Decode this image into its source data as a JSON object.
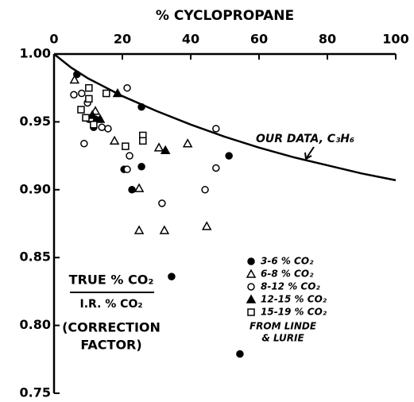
{
  "chart_data": {
    "type": "scatter",
    "xlabel": "% CYCLOPROPANE",
    "xlim": [
      0,
      100
    ],
    "xticks": [
      0,
      20,
      40,
      60,
      80,
      100
    ],
    "ylim": [
      0.75,
      1.0
    ],
    "yticks": [
      {
        "value": 1.0,
        "label": "1.00"
      },
      0.95,
      {
        "value": 0.9,
        "label": "0.90"
      },
      0.85,
      {
        "value": 0.8,
        "label": "0.80"
      },
      0.75
    ],
    "curve": {
      "name": "OUR DATA, C₃H₆",
      "color": "#000000",
      "x": [
        0,
        5,
        10,
        20,
        30,
        40,
        50,
        60,
        70,
        80,
        90,
        100
      ],
      "y": [
        1.0,
        0.99,
        0.982,
        0.969,
        0.958,
        0.948,
        0.939,
        0.931,
        0.924,
        0.918,
        0.912,
        0.907
      ]
    },
    "series": [
      {
        "name": "3-6 % CO₂",
        "marker": "circle",
        "filled": true,
        "color": "#000000",
        "x": [
          6.7,
          12.1,
          25.6,
          20.5,
          22.8,
          25.6,
          51.2,
          34.4,
          54.4,
          10.2,
          11.6
        ],
        "y": [
          0.985,
          0.952,
          0.961,
          0.915,
          0.9,
          0.917,
          0.925,
          0.836,
          0.779,
          0.952,
          0.946
        ]
      },
      {
        "name": "6-8 % CO₂",
        "marker": "triangle",
        "filled": false,
        "color": "#000000",
        "x": [
          6.0,
          17.7,
          24.9,
          24.9,
          32.3,
          44.7,
          30.7,
          39.1,
          12.1
        ],
        "y": [
          0.981,
          0.936,
          0.901,
          0.87,
          0.87,
          0.873,
          0.931,
          0.934,
          0.958
        ]
      },
      {
        "name": "8-12 % CO₂",
        "marker": "circle",
        "filled": false,
        "color": "#000000",
        "x": [
          5.8,
          8.1,
          8.8,
          21.4,
          22.1,
          21.4,
          31.6,
          44.2,
          47.4,
          47.4,
          14.0,
          15.8,
          10.7,
          9.8
        ],
        "y": [
          0.97,
          0.971,
          0.934,
          0.975,
          0.925,
          0.915,
          0.89,
          0.9,
          0.916,
          0.945,
          0.946,
          0.945,
          0.952,
          0.964
        ]
      },
      {
        "name": "12-15 % CO₂",
        "marker": "triangle",
        "filled": true,
        "color": "#000000",
        "x": [
          18.6,
          32.6,
          11.2,
          13.5
        ],
        "y": [
          0.971,
          0.929,
          0.955,
          0.952
        ]
      },
      {
        "name": "15-19 % CO₂",
        "marker": "square",
        "filled": false,
        "color": "#000000",
        "x": [
          7.9,
          10.2,
          10.2,
          15.3,
          20.9,
          26.0,
          26.0,
          9.3,
          11.6
        ],
        "y": [
          0.959,
          0.975,
          0.967,
          0.971,
          0.932,
          0.94,
          0.936,
          0.953,
          0.948
        ]
      }
    ],
    "annotations": {
      "ylabel_numerator": "TRUE % CO₂",
      "ylabel_denominator": "I.R. % CO₂",
      "ylabel_note": [
        "(CORRECTION",
        "FACTOR)"
      ],
      "source": [
        "FROM LINDE",
        "& LURIE"
      ]
    }
  }
}
